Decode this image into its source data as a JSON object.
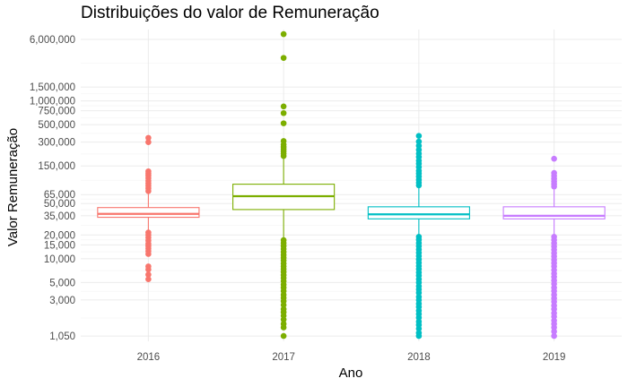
{
  "chart_data": {
    "type": "boxplot",
    "title": "Distribuições do valor de Remuneração",
    "xlabel": "Ano",
    "ylabel": "Valor Remuneração",
    "y_scale": "log10",
    "ylim": [
      900,
      8000000
    ],
    "grid": true,
    "legend": "none",
    "y_ticks": [
      1050,
      3000,
      5000,
      10000,
      15000,
      20000,
      35000,
      50000,
      65000,
      150000,
      300000,
      500000,
      750000,
      1000000,
      1500000,
      6000000
    ],
    "y_tick_labels": [
      "1,050",
      "3,000",
      "5,000",
      "10,000",
      "15,000",
      "20,000",
      "35,000",
      "50,000",
      "65,000",
      "150,000",
      "300,000",
      "500,000",
      "750,000",
      "1,000,000",
      "1,500,000",
      "6,000,000"
    ],
    "categories": [
      "2016",
      "2017",
      "2018",
      "2019"
    ],
    "series": [
      {
        "category": "2016",
        "color": "#F8766D",
        "whisker_low": 23000,
        "q1": 33500,
        "median": 37000,
        "q3": 44500,
        "whisker_high": 70000,
        "outliers": [
          5500,
          6300,
          7300,
          8000,
          11500,
          12500,
          13500,
          14500,
          15500,
          17000,
          18500,
          20000,
          21500,
          72000,
          78000,
          84000,
          90000,
          97000,
          105000,
          113000,
          120000,
          128000,
          300000,
          340000
        ]
      },
      {
        "category": "2017",
        "color": "#7CAE00",
        "whisker_low": 18500,
        "q1": 42000,
        "median": 62000,
        "q3": 88000,
        "whisker_high": 190000,
        "outliers": [
          1050,
          1350,
          1500,
          1700,
          1900,
          2100,
          2300,
          2600,
          2900,
          3200,
          3500,
          3900,
          4300,
          4700,
          5200,
          5700,
          6200,
          6800,
          7400,
          8000,
          8700,
          9500,
          10300,
          11200,
          12200,
          13300,
          14500,
          15800,
          17200,
          200000,
          215000,
          230000,
          245000,
          260000,
          280000,
          310000,
          520000,
          700000,
          850000,
          3500000,
          7000000
        ]
      },
      {
        "category": "2018",
        "color": "#00BFC4",
        "whisker_low": 19000,
        "q1": 32000,
        "median": 36500,
        "q3": 45500,
        "whisker_high": 80000,
        "outliers": [
          1050,
          1150,
          1300,
          1450,
          1600,
          1800,
          2000,
          2200,
          2450,
          2700,
          3000,
          3300,
          3700,
          4100,
          4500,
          5000,
          5500,
          6100,
          6700,
          7400,
          8100,
          8900,
          9800,
          10800,
          11900,
          13100,
          14400,
          15800,
          17400,
          19000,
          85000,
          92000,
          100000,
          110000,
          120000,
          130000,
          145000,
          160000,
          175000,
          195000,
          215000,
          240000,
          270000,
          305000,
          360000
        ]
      },
      {
        "category": "2019",
        "color": "#C77CFF",
        "whisker_low": 19000,
        "q1": 32000,
        "median": 35000,
        "q3": 45500,
        "whisker_high": 75000,
        "outliers": [
          1050,
          1200,
          1350,
          1500,
          1650,
          1850,
          2050,
          2300,
          2550,
          2850,
          3150,
          3500,
          3900,
          4300,
          4800,
          5300,
          5900,
          6500,
          7200,
          8000,
          8800,
          9700,
          10700,
          11800,
          13000,
          14300,
          15700,
          17300,
          19000,
          82000,
          88000,
          95000,
          103000,
          112000,
          122000,
          185000
        ]
      }
    ]
  }
}
